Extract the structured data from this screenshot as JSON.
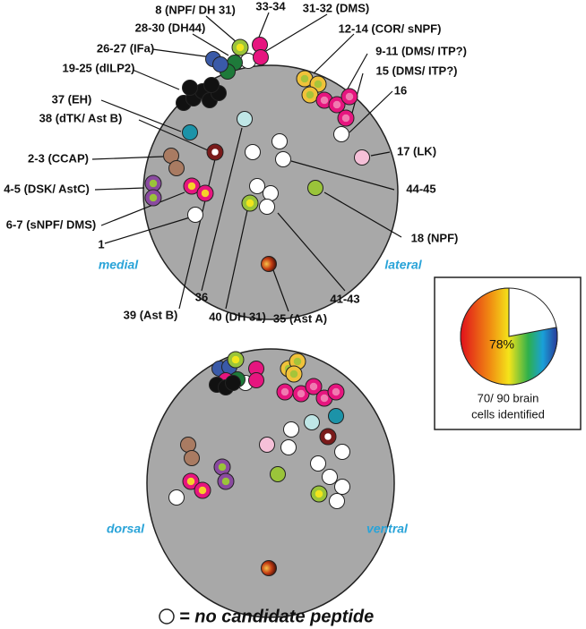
{
  "labels": [
    "8 (NPF/ DH 31)",
    "33-34",
    "31-32 (DMS)",
    "28-30 (DH44)",
    "12-14 (COR/ sNPF)",
    "26-27 (IFa)",
    "9-11 (DMS/ ITP?)",
    "19-25 (dILP2)",
    "15 (DMS/ ITP?)",
    "16",
    "37 (EH)",
    "38 (dTK/ Ast B)",
    "17 (LK)",
    "2-3 (CCAP)",
    "4-5 (DSK/ AstC)",
    "44-45",
    "6-7 (sNPF/ DMS)",
    "1",
    "18 (NPF)",
    "36",
    "41-43",
    "39 (Ast B)",
    "40 (DH 31)",
    "35 (Ast A)"
  ],
  "orientation": {
    "medial": "medial",
    "lateral": "lateral",
    "dorsal": "dorsal",
    "ventral": "ventral"
  },
  "inset": {
    "pie_value": 78,
    "pie_label": "78%",
    "caption_line1": "70/ 90 brain",
    "caption_line2": "cells identified"
  },
  "legend": "= no candidate peptide"
}
